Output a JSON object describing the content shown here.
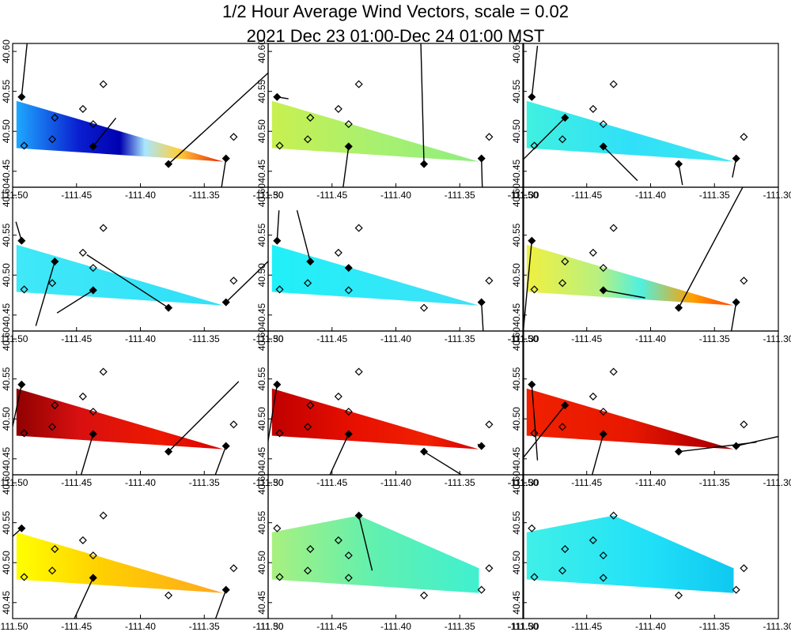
{
  "title_line1": "1/2 Hour Average Wind Vectors, scale =  0.02",
  "title_line2": "2021 Dec 23 01:00-Dec 24 01:00 MST",
  "chart_data": {
    "type": "vector-field-small-multiples",
    "grid": {
      "rows": 4,
      "cols": 3
    },
    "xlim": [
      -111.5,
      -111.3
    ],
    "ylim": [
      40.43,
      40.61
    ],
    "xticks": [
      -111.5,
      -111.45,
      -111.4,
      -111.35,
      -111.3
    ],
    "xtick_labels": [
      "-111.50",
      "-111.45",
      "-111.40",
      "-111.35",
      "-111.30"
    ],
    "yticks": [
      40.45,
      40.5,
      40.55,
      40.6
    ],
    "ytick_labels": [
      "40.45",
      "40.50",
      "40.55",
      "40.60"
    ],
    "region": {
      "type": "polygon",
      "lon_lat": [
        [
          -111.497,
          40.538
        ],
        [
          -111.335,
          40.462
        ],
        [
          -111.497,
          40.479
        ]
      ]
    },
    "stations": [
      {
        "id": "S1",
        "lon": -111.493,
        "lat": 40.543
      },
      {
        "id": "S2",
        "lon": -111.491,
        "lat": 40.482
      },
      {
        "id": "S3",
        "lon": -111.467,
        "lat": 40.517
      },
      {
        "id": "S4",
        "lon": -111.469,
        "lat": 40.49
      },
      {
        "id": "S5",
        "lon": -111.445,
        "lat": 40.528
      },
      {
        "id": "S6",
        "lon": -111.437,
        "lat": 40.509
      },
      {
        "id": "S7",
        "lon": -111.437,
        "lat": 40.481
      },
      {
        "id": "S8",
        "lon": -111.429,
        "lat": 40.559
      },
      {
        "id": "S9",
        "lon": -111.378,
        "lat": 40.459
      },
      {
        "id": "S10",
        "lon": -111.333,
        "lat": 40.466
      },
      {
        "id": "S11",
        "lon": -111.327,
        "lat": 40.493
      }
    ],
    "panels": [
      {
        "index": 1,
        "region": "default",
        "gradient": [
          {
            "t": 0,
            "c": "#1ea8ff"
          },
          {
            "t": 0.3,
            "c": "#0a1fd0"
          },
          {
            "t": 0.5,
            "c": "#0000b0"
          },
          {
            "t": 0.62,
            "c": "#a8e6ff"
          },
          {
            "t": 0.78,
            "c": "#ffd040"
          },
          {
            "t": 1,
            "c": "#e82000"
          }
        ],
        "vectors": [
          {
            "s": "S1",
            "u": 0.004,
            "v": 0.039
          },
          {
            "s": "S7",
            "u": 0.012,
            "v": 0.015
          },
          {
            "s": "S9",
            "u": 0.083,
            "v": 0.076
          },
          {
            "s": "S10",
            "u": -0.004,
            "v": -0.026
          }
        ],
        "filled": [
          "S1",
          "S7",
          "S9",
          "S10"
        ]
      },
      {
        "index": 2,
        "region": "default",
        "gradient": [
          {
            "t": 0,
            "c": "#c8f050"
          },
          {
            "t": 0.5,
            "c": "#a8f070"
          },
          {
            "t": 1,
            "c": "#90ee80"
          }
        ],
        "vectors": [
          {
            "s": "S1",
            "u": 0.006,
            "v": -0.001
          },
          {
            "s": "S7",
            "u": -0.004,
            "v": -0.03
          },
          {
            "s": "S9",
            "u": -0.002,
            "v": 0.077
          },
          {
            "s": "S10",
            "u": 0.001,
            "v": -0.036
          }
        ],
        "filled": [
          "S1",
          "S7",
          "S9",
          "S10"
        ]
      },
      {
        "index": 3,
        "region": "default",
        "gradient": [
          {
            "t": 0,
            "c": "#40f0e0"
          },
          {
            "t": 0.5,
            "c": "#30e0f8"
          },
          {
            "t": 1,
            "c": "#40e8f0"
          }
        ],
        "vectors": [
          {
            "s": "S1",
            "u": 0.003,
            "v": 0.027
          },
          {
            "s": "S3",
            "u": -0.029,
            "v": -0.029
          },
          {
            "s": "S7",
            "u": 0.018,
            "v": -0.018
          },
          {
            "s": "S9",
            "u": 0.002,
            "v": -0.011
          },
          {
            "s": "S10",
            "u": -0.002,
            "v": -0.01
          }
        ],
        "filled": [
          "S1",
          "S3",
          "S7",
          "S9",
          "S10"
        ]
      },
      {
        "index": 4,
        "region": "default",
        "gradient": [
          {
            "t": 0,
            "c": "#40e8f8"
          },
          {
            "t": 1,
            "c": "#30e0f8"
          }
        ],
        "vectors": [
          {
            "s": "S1",
            "u": -0.003,
            "v": 0.01
          },
          {
            "s": "S3",
            "u": -0.01,
            "v": -0.034
          },
          {
            "s": "S7",
            "u": -0.019,
            "v": -0.012
          },
          {
            "s": "S9",
            "u": -0.043,
            "v": 0.028
          },
          {
            "s": "S10",
            "u": 0.034,
            "v": 0.033
          }
        ],
        "filled": [
          "S1",
          "S3",
          "S7",
          "S9",
          "S10"
        ]
      },
      {
        "index": 5,
        "region": "default",
        "gradient": [
          {
            "t": 0,
            "c": "#20f0f8"
          },
          {
            "t": 1,
            "c": "#40e0f8"
          }
        ],
        "vectors": [
          {
            "s": "S1",
            "u": 0.001,
            "v": 0.016
          },
          {
            "s": "S3",
            "u": -0.007,
            "v": 0.027
          },
          {
            "s": "S10",
            "u": 0.001,
            "v": -0.017
          }
        ],
        "filled": [
          "S1",
          "S3",
          "S6",
          "S10"
        ]
      },
      {
        "index": 6,
        "region": "default",
        "gradient": [
          {
            "t": 0,
            "c": "#f0f040"
          },
          {
            "t": 0.35,
            "c": "#b8f080"
          },
          {
            "t": 0.55,
            "c": "#50f0e0"
          },
          {
            "t": 0.8,
            "c": "#ffa000"
          },
          {
            "t": 1,
            "c": "#ff4000"
          }
        ],
        "vectors": [
          {
            "s": "S1",
            "u": -0.005,
            "v": -0.053
          },
          {
            "s": "S7",
            "u": 0.022,
            "v": -0.004
          },
          {
            "s": "S9",
            "u": 0.035,
            "v": 0.066
          },
          {
            "s": "S10",
            "u": -0.003,
            "v": -0.018
          }
        ],
        "filled": [
          "S1",
          "S7",
          "S9",
          "S10"
        ]
      },
      {
        "index": 7,
        "region": "default",
        "gradient": [
          {
            "t": 0,
            "c": "#900000"
          },
          {
            "t": 0.3,
            "c": "#d81010"
          },
          {
            "t": 0.7,
            "c": "#ee1800"
          },
          {
            "t": 1,
            "c": "#d80000"
          }
        ],
        "vectors": [
          {
            "s": "S1",
            "u": -0.016,
            "v": -0.075
          },
          {
            "s": "S7",
            "u": -0.01,
            "v": -0.034
          },
          {
            "s": "S9",
            "u": 0.037,
            "v": 0.037
          },
          {
            "s": "S10",
            "u": -0.01,
            "v": -0.027
          }
        ],
        "filled": [
          "S1",
          "S7",
          "S9",
          "S10"
        ]
      },
      {
        "index": 8,
        "region": "default",
        "gradient": [
          {
            "t": 0,
            "c": "#c00000"
          },
          {
            "t": 0.4,
            "c": "#e81000"
          },
          {
            "t": 0.75,
            "c": "#f02000"
          },
          {
            "t": 1,
            "c": "#d80000"
          }
        ],
        "vectors": [
          {
            "s": "S1",
            "u": -0.007,
            "v": -0.044
          },
          {
            "s": "S7",
            "u": -0.011,
            "v": -0.024
          },
          {
            "s": "S9",
            "u": 0.021,
            "v": -0.013
          },
          {
            "s": "S10",
            "u": -0.002,
            "v": 0.001
          }
        ],
        "filled": [
          "S1",
          "S7",
          "S9",
          "S10"
        ]
      },
      {
        "index": 9,
        "region": "default",
        "gradient": [
          {
            "t": 0,
            "c": "#f02000"
          },
          {
            "t": 0.5,
            "c": "#e81800"
          },
          {
            "t": 0.85,
            "c": "#b80000"
          },
          {
            "t": 1,
            "c": "#a00000"
          }
        ],
        "vectors": [
          {
            "s": "S1",
            "u": 0.003,
            "v": -0.04
          },
          {
            "s": "S3",
            "u": -0.035,
            "v": -0.044
          },
          {
            "s": "S7",
            "u": -0.006,
            "v": -0.022
          },
          {
            "s": "S9",
            "u": 0.041,
            "v": 0.005
          },
          {
            "s": "S10",
            "u": 0.044,
            "v": 0.01
          }
        ],
        "filled": [
          "S1",
          "S3",
          "S7",
          "S9",
          "S10"
        ]
      },
      {
        "index": 10,
        "region": "default",
        "gradient": [
          {
            "t": 0,
            "c": "#ffff00"
          },
          {
            "t": 0.4,
            "c": "#ffd000"
          },
          {
            "t": 1,
            "c": "#ffa820"
          }
        ],
        "vectors": [
          {
            "s": "S1",
            "u": -0.01,
            "v": -0.009
          },
          {
            "s": "S7",
            "u": -0.017,
            "v": -0.037
          },
          {
            "s": "S10",
            "u": -0.009,
            "v": -0.025
          }
        ],
        "filled": [
          "S1",
          "S7",
          "S10"
        ]
      },
      {
        "index": 11,
        "region": "expanded",
        "gradient": [
          {
            "t": 0,
            "c": "#a8f080"
          },
          {
            "t": 0.5,
            "c": "#60f0b0"
          },
          {
            "t": 1,
            "c": "#40f0d0"
          }
        ],
        "vectors": [
          {
            "s": "S8",
            "u": 0.007,
            "v": -0.029
          }
        ],
        "filled": [
          "S8"
        ]
      },
      {
        "index": 12,
        "region": "expanded",
        "gradient": [
          {
            "t": 0,
            "c": "#40f0e8"
          },
          {
            "t": 0.6,
            "c": "#20e0f8"
          },
          {
            "t": 1,
            "c": "#10c8f0"
          }
        ],
        "vectors": [],
        "filled": []
      }
    ]
  }
}
